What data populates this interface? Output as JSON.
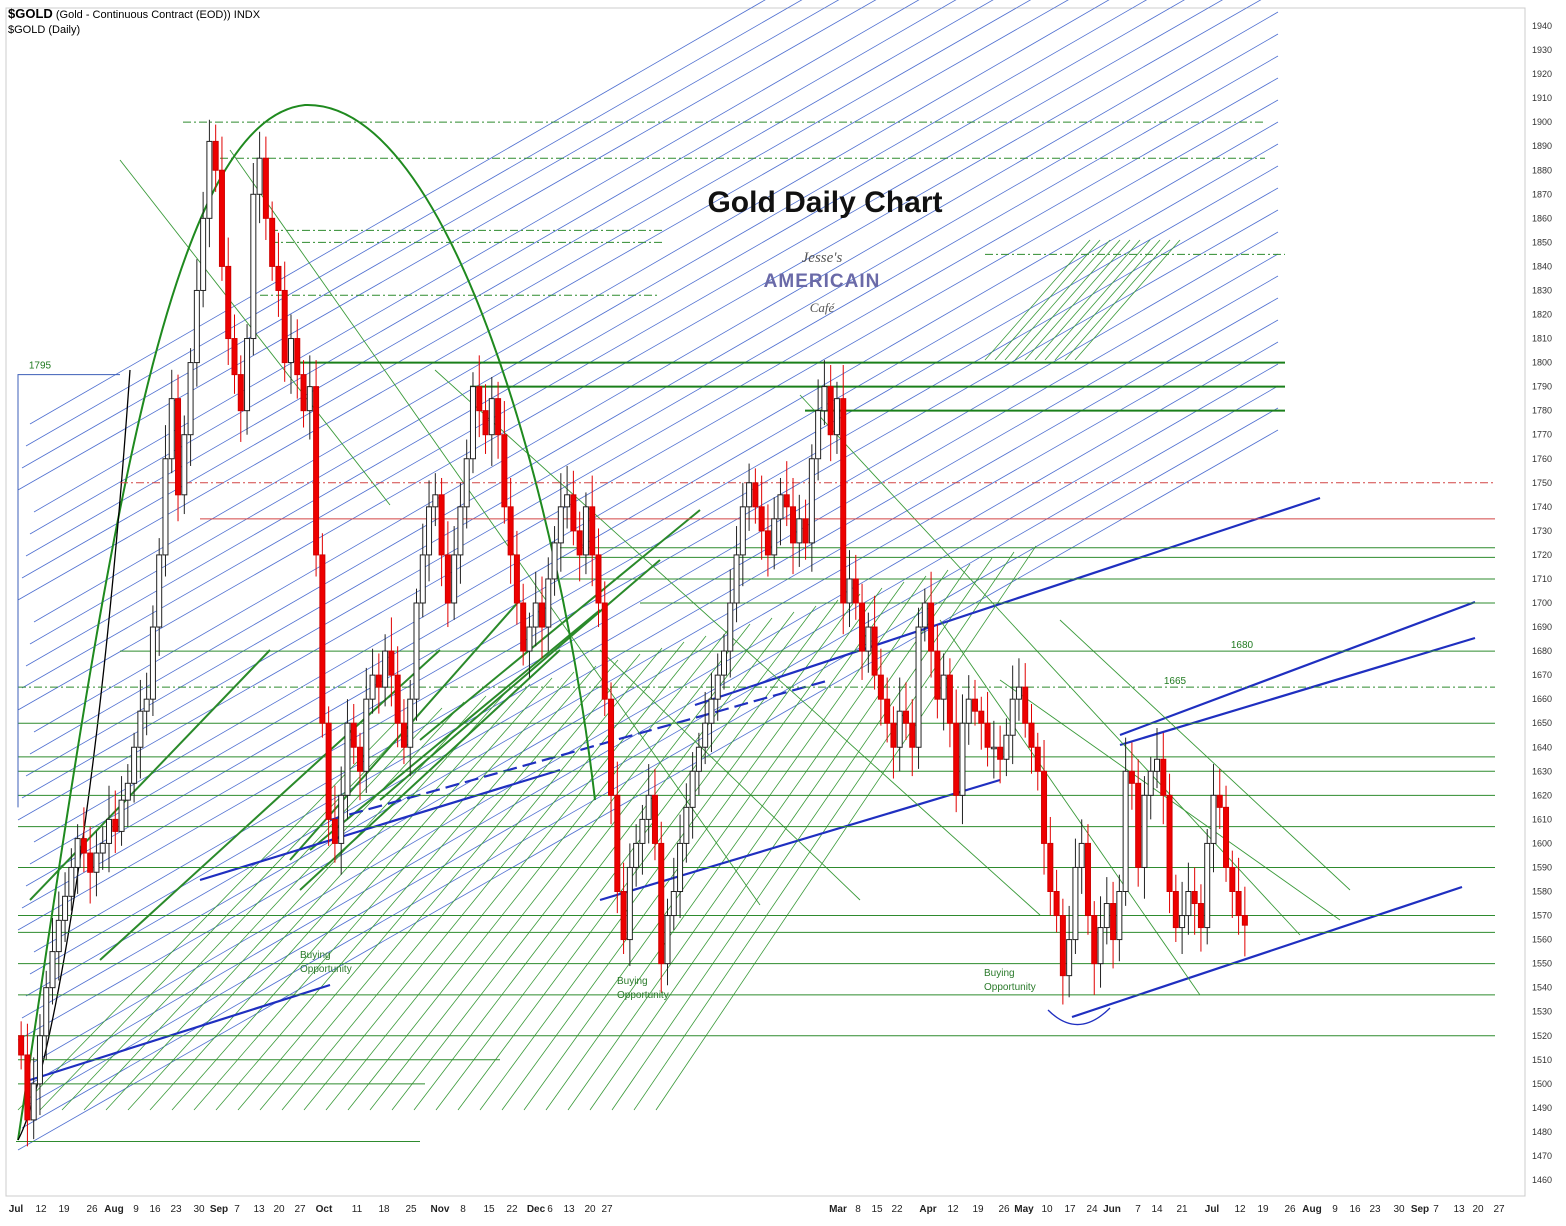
{
  "header": {
    "symbol": "$GOLD",
    "description": "(Gold - Continuous Contract (EOD))",
    "exchange": "INDX",
    "subtitle": "$GOLD (Daily)"
  },
  "logo": {
    "line1": "Jesse's",
    "line2": "AMERICAIN",
    "line3": "Café"
  },
  "chart_data": {
    "type": "candlestick",
    "title": "Gold Daily Chart",
    "ylim": [
      1455,
      1945
    ],
    "yticks": [
      1460,
      1470,
      1480,
      1490,
      1500,
      1510,
      1520,
      1530,
      1540,
      1550,
      1560,
      1570,
      1580,
      1590,
      1600,
      1610,
      1620,
      1630,
      1640,
      1650,
      1660,
      1670,
      1680,
      1690,
      1700,
      1710,
      1720,
      1730,
      1740,
      1750,
      1760,
      1770,
      1780,
      1790,
      1800,
      1810,
      1820,
      1830,
      1840,
      1850,
      1860,
      1870,
      1880,
      1890,
      1900,
      1910,
      1920,
      1930,
      1940
    ],
    "xticks": [
      "Jul",
      "12",
      "19",
      "26",
      "Aug",
      "9",
      "16",
      "23",
      "30",
      "Sep",
      "7",
      "13",
      "20",
      "27",
      "Oct",
      "11",
      "18",
      "25",
      "Nov",
      "8",
      "15",
      "22",
      "Dec",
      "6",
      "13",
      "20",
      "27",
      "Mar",
      "8",
      "15",
      "22",
      "Apr",
      "12",
      "19",
      "26",
      "May",
      "10",
      "17",
      "24",
      "Jun",
      "7",
      "14",
      "21",
      "Jul",
      "12",
      "19",
      "26",
      "Aug",
      "9",
      "16",
      "23",
      "30",
      "Sep",
      "7",
      "13",
      "20",
      "27"
    ],
    "xtick_bold": [
      "Jul",
      "Aug",
      "Sep",
      "Oct",
      "Nov",
      "Dec",
      "Mar",
      "Apr",
      "May",
      "Jun",
      "Aug",
      "Sep"
    ],
    "levels": [
      1900,
      1885,
      1855,
      1850,
      1845,
      1828,
      1800,
      1790,
      1780,
      1750,
      1735,
      1723,
      1719,
      1710,
      1700,
      1680,
      1665,
      1650,
      1636,
      1630,
      1620,
      1607,
      1590,
      1570,
      1563,
      1550,
      1537,
      1520,
      1510,
      1500,
      1476
    ],
    "level_labels": [
      {
        "price": 1795,
        "text": "1795"
      },
      {
        "price": 1680,
        "text": "1680"
      },
      {
        "price": 1665,
        "text": "1665"
      }
    ],
    "annotations": [
      {
        "text": "Buying Opportunity",
        "price": 1555
      },
      {
        "text": "Buying Opportunity",
        "price": 1544
      },
      {
        "text": "Buying Opportunity",
        "price": 1549
      }
    ],
    "closes": [
      1512,
      1485,
      1500,
      1520,
      1540,
      1555,
      1568,
      1578,
      1590,
      1602,
      1596,
      1588,
      1596,
      1600,
      1610,
      1605,
      1618,
      1625,
      1640,
      1655,
      1660,
      1690,
      1720,
      1760,
      1785,
      1745,
      1770,
      1800,
      1830,
      1860,
      1892,
      1880,
      1840,
      1810,
      1795,
      1780,
      1810,
      1870,
      1885,
      1860,
      1840,
      1830,
      1800,
      1810,
      1795,
      1780,
      1790,
      1720,
      1650,
      1610,
      1600,
      1620,
      1650,
      1640,
      1630,
      1660,
      1670,
      1665,
      1680,
      1670,
      1650,
      1640,
      1660,
      1700,
      1720,
      1740,
      1745,
      1720,
      1700,
      1720,
      1740,
      1760,
      1790,
      1780,
      1770,
      1785,
      1770,
      1740,
      1720,
      1700,
      1680,
      1690,
      1700,
      1690,
      1710,
      1725,
      1740,
      1745,
      1730,
      1720,
      1740,
      1720,
      1700,
      1660,
      1620,
      1580,
      1560,
      1590,
      1600,
      1610,
      1620,
      1600,
      1550,
      1570,
      1580,
      1600,
      1615,
      1630,
      1640,
      1650,
      1660,
      1670,
      1680,
      1700,
      1720,
      1740,
      1750,
      1740,
      1730,
      1720,
      1735,
      1745,
      1740,
      1725,
      1735,
      1725,
      1760,
      1780,
      1790,
      1770,
      1785,
      1700,
      1710,
      1700,
      1680,
      1690,
      1670,
      1660,
      1650,
      1640,
      1655,
      1650,
      1640,
      1690,
      1700,
      1680,
      1660,
      1670,
      1650,
      1620,
      1650,
      1660,
      1655,
      1650,
      1640,
      1640,
      1635,
      1645,
      1660,
      1665,
      1650,
      1640,
      1630,
      1600,
      1580,
      1570,
      1545,
      1560,
      1590,
      1600,
      1570,
      1550,
      1565,
      1575,
      1560,
      1580,
      1630,
      1625,
      1590,
      1620,
      1630,
      1635,
      1620,
      1580,
      1565,
      1570,
      1580,
      1575,
      1565,
      1600,
      1620,
      1615,
      1590,
      1580,
      1570,
      1566
    ]
  }
}
